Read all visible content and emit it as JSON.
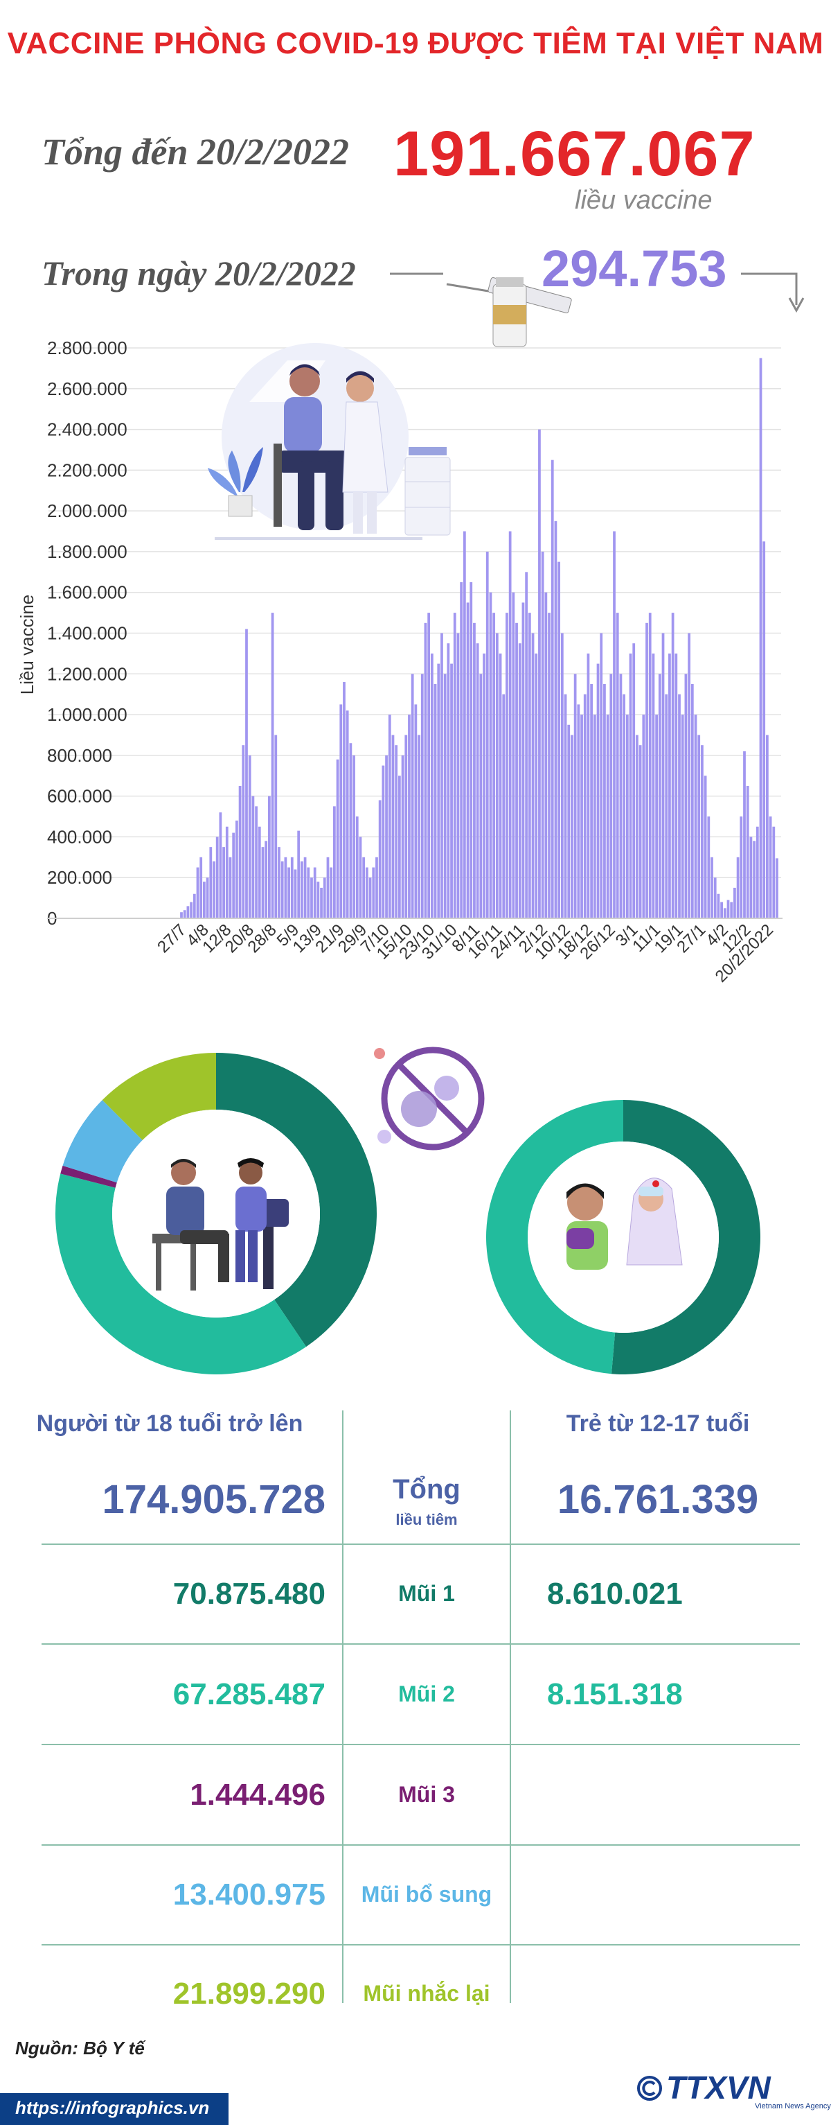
{
  "title": "VACCINE PHÒNG COVID-19 ĐƯỢC TIÊM TẠI VIỆT NAM",
  "summary": {
    "total_label": "Tổng đến 20/2/2022",
    "total_value": "191.667.067",
    "total_unit": "liều vaccine",
    "day_label": "Trong ngày 20/2/2022",
    "day_value": "294.753"
  },
  "colors": {
    "title_red": "#e3262a",
    "bar_purple": "#a196f0",
    "dark_teal": "#127b68",
    "teal": "#22bc9d",
    "purple": "#7a1f72",
    "light_blue": "#5cb6e6",
    "lime": "#9fc42a",
    "navy": "#4c62a6"
  },
  "chart_data": {
    "type": "bar",
    "ylabel": "Liều vaccine",
    "ylim": [
      0,
      2800000
    ],
    "yticks": [
      "2.800.000",
      "2.600.000",
      "2.400.000",
      "2.200.000",
      "2.000.000",
      "1.800.000",
      "1.600.000",
      "1.400.000",
      "1.200.000",
      "1.000.000",
      "800.000",
      "600.000",
      "400.000",
      "200.000",
      "0"
    ],
    "xtick_labels": [
      "27/7",
      "4/8",
      "12/8",
      "20/8",
      "28/8",
      "5/9",
      "13/9",
      "21/9",
      "29/9",
      "7/10",
      "15/10",
      "23/10",
      "31/10",
      "8/11",
      "16/11",
      "24/11",
      "2/12",
      "10/12",
      "18/12",
      "26/12",
      "3/1",
      "11/1",
      "19/1",
      "27/1",
      "4/2",
      "12/2",
      "20/2/2022"
    ],
    "x_start": "27/7/2021",
    "x_end": "20/2/2022",
    "values": [
      30000,
      40000,
      60000,
      80000,
      120000,
      250000,
      300000,
      180000,
      200000,
      350000,
      280000,
      400000,
      520000,
      350000,
      450000,
      300000,
      420000,
      480000,
      650000,
      850000,
      1420000,
      800000,
      600000,
      550000,
      450000,
      350000,
      380000,
      600000,
      1500000,
      900000,
      350000,
      280000,
      300000,
      250000,
      300000,
      240000,
      430000,
      280000,
      300000,
      250000,
      200000,
      250000,
      180000,
      150000,
      200000,
      300000,
      250000,
      550000,
      780000,
      1050000,
      1160000,
      1020000,
      860000,
      800000,
      500000,
      400000,
      300000,
      250000,
      200000,
      250000,
      300000,
      580000,
      750000,
      800000,
      1000000,
      900000,
      850000,
      700000,
      800000,
      900000,
      1000000,
      1200000,
      1050000,
      900000,
      1200000,
      1450000,
      1500000,
      1300000,
      1150000,
      1250000,
      1400000,
      1200000,
      1350000,
      1250000,
      1500000,
      1400000,
      1650000,
      1900000,
      1550000,
      1650000,
      1450000,
      1350000,
      1200000,
      1300000,
      1800000,
      1600000,
      1500000,
      1400000,
      1300000,
      1100000,
      1500000,
      1900000,
      1600000,
      1450000,
      1350000,
      1550000,
      1700000,
      1500000,
      1400000,
      1300000,
      2400000,
      1800000,
      1600000,
      1500000,
      2250000,
      1950000,
      1750000,
      1400000,
      1100000,
      950000,
      900000,
      1200000,
      1050000,
      1000000,
      1100000,
      1300000,
      1150000,
      1000000,
      1250000,
      1400000,
      1150000,
      1000000,
      1200000,
      1900000,
      1500000,
      1200000,
      1100000,
      1000000,
      1300000,
      1350000,
      900000,
      850000,
      1000000,
      1450000,
      1500000,
      1300000,
      1000000,
      1200000,
      1400000,
      1100000,
      1300000,
      1500000,
      1300000,
      1100000,
      1000000,
      1200000,
      1400000,
      1150000,
      1000000,
      900000,
      850000,
      700000,
      500000,
      300000,
      200000,
      120000,
      80000,
      50000,
      90000,
      80000,
      150000,
      300000,
      500000,
      820000,
      650000,
      400000,
      380000,
      450000,
      2750000,
      1850000,
      900000,
      500000,
      450000,
      294753
    ]
  },
  "donuts": {
    "adult_segments": [
      {
        "name": "Mũi 1",
        "value": 70875480,
        "color": "#127b68"
      },
      {
        "name": "Mũi 2",
        "value": 67285487,
        "color": "#22bc9d"
      },
      {
        "name": "Mũi 3",
        "value": 1444496,
        "color": "#7a1f72"
      },
      {
        "name": "Mũi bổ sung",
        "value": 13400975,
        "color": "#5cb6e6"
      },
      {
        "name": "Mũi nhắc lại",
        "value": 21899290,
        "color": "#9fc42a"
      }
    ],
    "child_segments": [
      {
        "name": "Mũi 1",
        "value": 8610021,
        "color": "#127b68"
      },
      {
        "name": "Mũi 2",
        "value": 8151318,
        "color": "#22bc9d"
      }
    ]
  },
  "table": {
    "adult_header": "Người từ 18 tuổi trở lên",
    "child_header": "Trẻ từ 12-17 tuổi",
    "total_label_1": "Tổng",
    "total_label_2": "liều tiêm",
    "adult_total": "174.905.728",
    "child_total": "16.761.339",
    "rows": [
      {
        "label": "Mũi 1",
        "adult": "70.875.480",
        "child": "8.610.021",
        "color": "#127b68"
      },
      {
        "label": "Mũi 2",
        "adult": "67.285.487",
        "child": "8.151.318",
        "color": "#22bc9d"
      },
      {
        "label": "Mũi 3",
        "adult": "1.444.496",
        "child": "",
        "color": "#7a1f72"
      },
      {
        "label": "Mũi bổ sung",
        "adult": "13.400.975",
        "child": "",
        "color": "#5cb6e6"
      },
      {
        "label": "Mũi nhắc lại",
        "adult": "21.899.290",
        "child": "",
        "color": "#9fc42a"
      }
    ]
  },
  "footer": {
    "source": "Nguồn: Bộ Y tế",
    "url": "https://infographics.vn",
    "logo": "TTXVN",
    "logo_sub": "Vietnam News Agency"
  }
}
